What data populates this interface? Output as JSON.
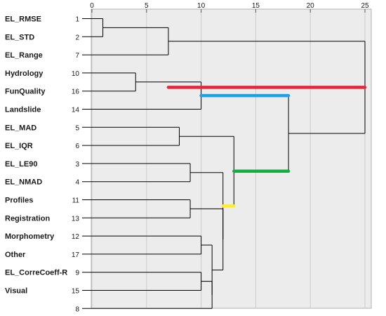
{
  "chart_data": {
    "type": "dendrogram",
    "title": "",
    "xlabel": "",
    "ylabel": "",
    "xlim": [
      0,
      25
    ],
    "x_ticks": [
      0,
      5,
      10,
      15,
      20,
      25
    ],
    "leaves": [
      {
        "label": "EL_RMSE",
        "case": "1"
      },
      {
        "label": "EL_STD",
        "case": "2"
      },
      {
        "label": "EL_Range",
        "case": "7"
      },
      {
        "label": "Hydrology",
        "case": "10"
      },
      {
        "label": "FunQuality",
        "case": "16"
      },
      {
        "label": "Landslide",
        "case": "14"
      },
      {
        "label": "EL_MAD",
        "case": "5"
      },
      {
        "label": "EL_IQR",
        "case": "6"
      },
      {
        "label": "EL_LE90",
        "case": "3"
      },
      {
        "label": "EL_NMAD",
        "case": "4"
      },
      {
        "label": "Profiles",
        "case": "11"
      },
      {
        "label": "Registration",
        "case": "13"
      },
      {
        "label": "Morphometry",
        "case": "12"
      },
      {
        "label": "Other",
        "case": "17"
      },
      {
        "label": "EL_CorreCoeff-R",
        "case": "9"
      },
      {
        "label": "Visual",
        "case": "15"
      },
      {
        "label": "",
        "case": "8"
      }
    ],
    "merges": [
      {
        "id": "m1",
        "left": 0,
        "right": 1,
        "height": 1
      },
      {
        "id": "m2",
        "left": "m1",
        "right": 2,
        "height": 7
      },
      {
        "id": "m3",
        "left": 3,
        "right": 4,
        "height": 4
      },
      {
        "id": "m4",
        "left": "m3",
        "right": 5,
        "height": 10
      },
      {
        "id": "m5",
        "left": 6,
        "right": 7,
        "height": 8
      },
      {
        "id": "m6",
        "left": 8,
        "right": 9,
        "height": 9
      },
      {
        "id": "m7",
        "left": 10,
        "right": 11,
        "height": 9
      },
      {
        "id": "m8",
        "left": 12,
        "right": 13,
        "height": 10
      },
      {
        "id": "m9",
        "left": 14,
        "right": 15,
        "height": 10
      },
      {
        "id": "m10",
        "left": "m9",
        "right": 16,
        "height": 11
      },
      {
        "id": "m11",
        "left": "m8",
        "right": "m10",
        "height": 11
      },
      {
        "id": "m12",
        "left": "m7",
        "right": "m11",
        "height": 12
      },
      {
        "id": "m13",
        "left": "m6",
        "right": "m12",
        "height": 12
      },
      {
        "id": "m14",
        "left": "m5",
        "right": "m13",
        "height": 13
      },
      {
        "id": "m15",
        "left": "m4",
        "right": "m14",
        "height": 18
      },
      {
        "id": "m16",
        "left": "m2",
        "right": "m15",
        "height": 25
      }
    ],
    "highlights": [
      {
        "merge": "m16",
        "from": 7,
        "to": 25,
        "color": "#e8263a"
      },
      {
        "merge": "m4",
        "from": 10,
        "to": 18,
        "color": "#1ea0e8"
      },
      {
        "merge": "m14",
        "from": 13,
        "to": 18,
        "color": "#14aa44"
      },
      {
        "merge": "m13",
        "from": 12,
        "to": 13,
        "color": "#ffee22"
      }
    ],
    "colors": {
      "plot_background": "#ececec",
      "line": "#000000",
      "grid": "#cccccc"
    },
    "grid": true
  }
}
